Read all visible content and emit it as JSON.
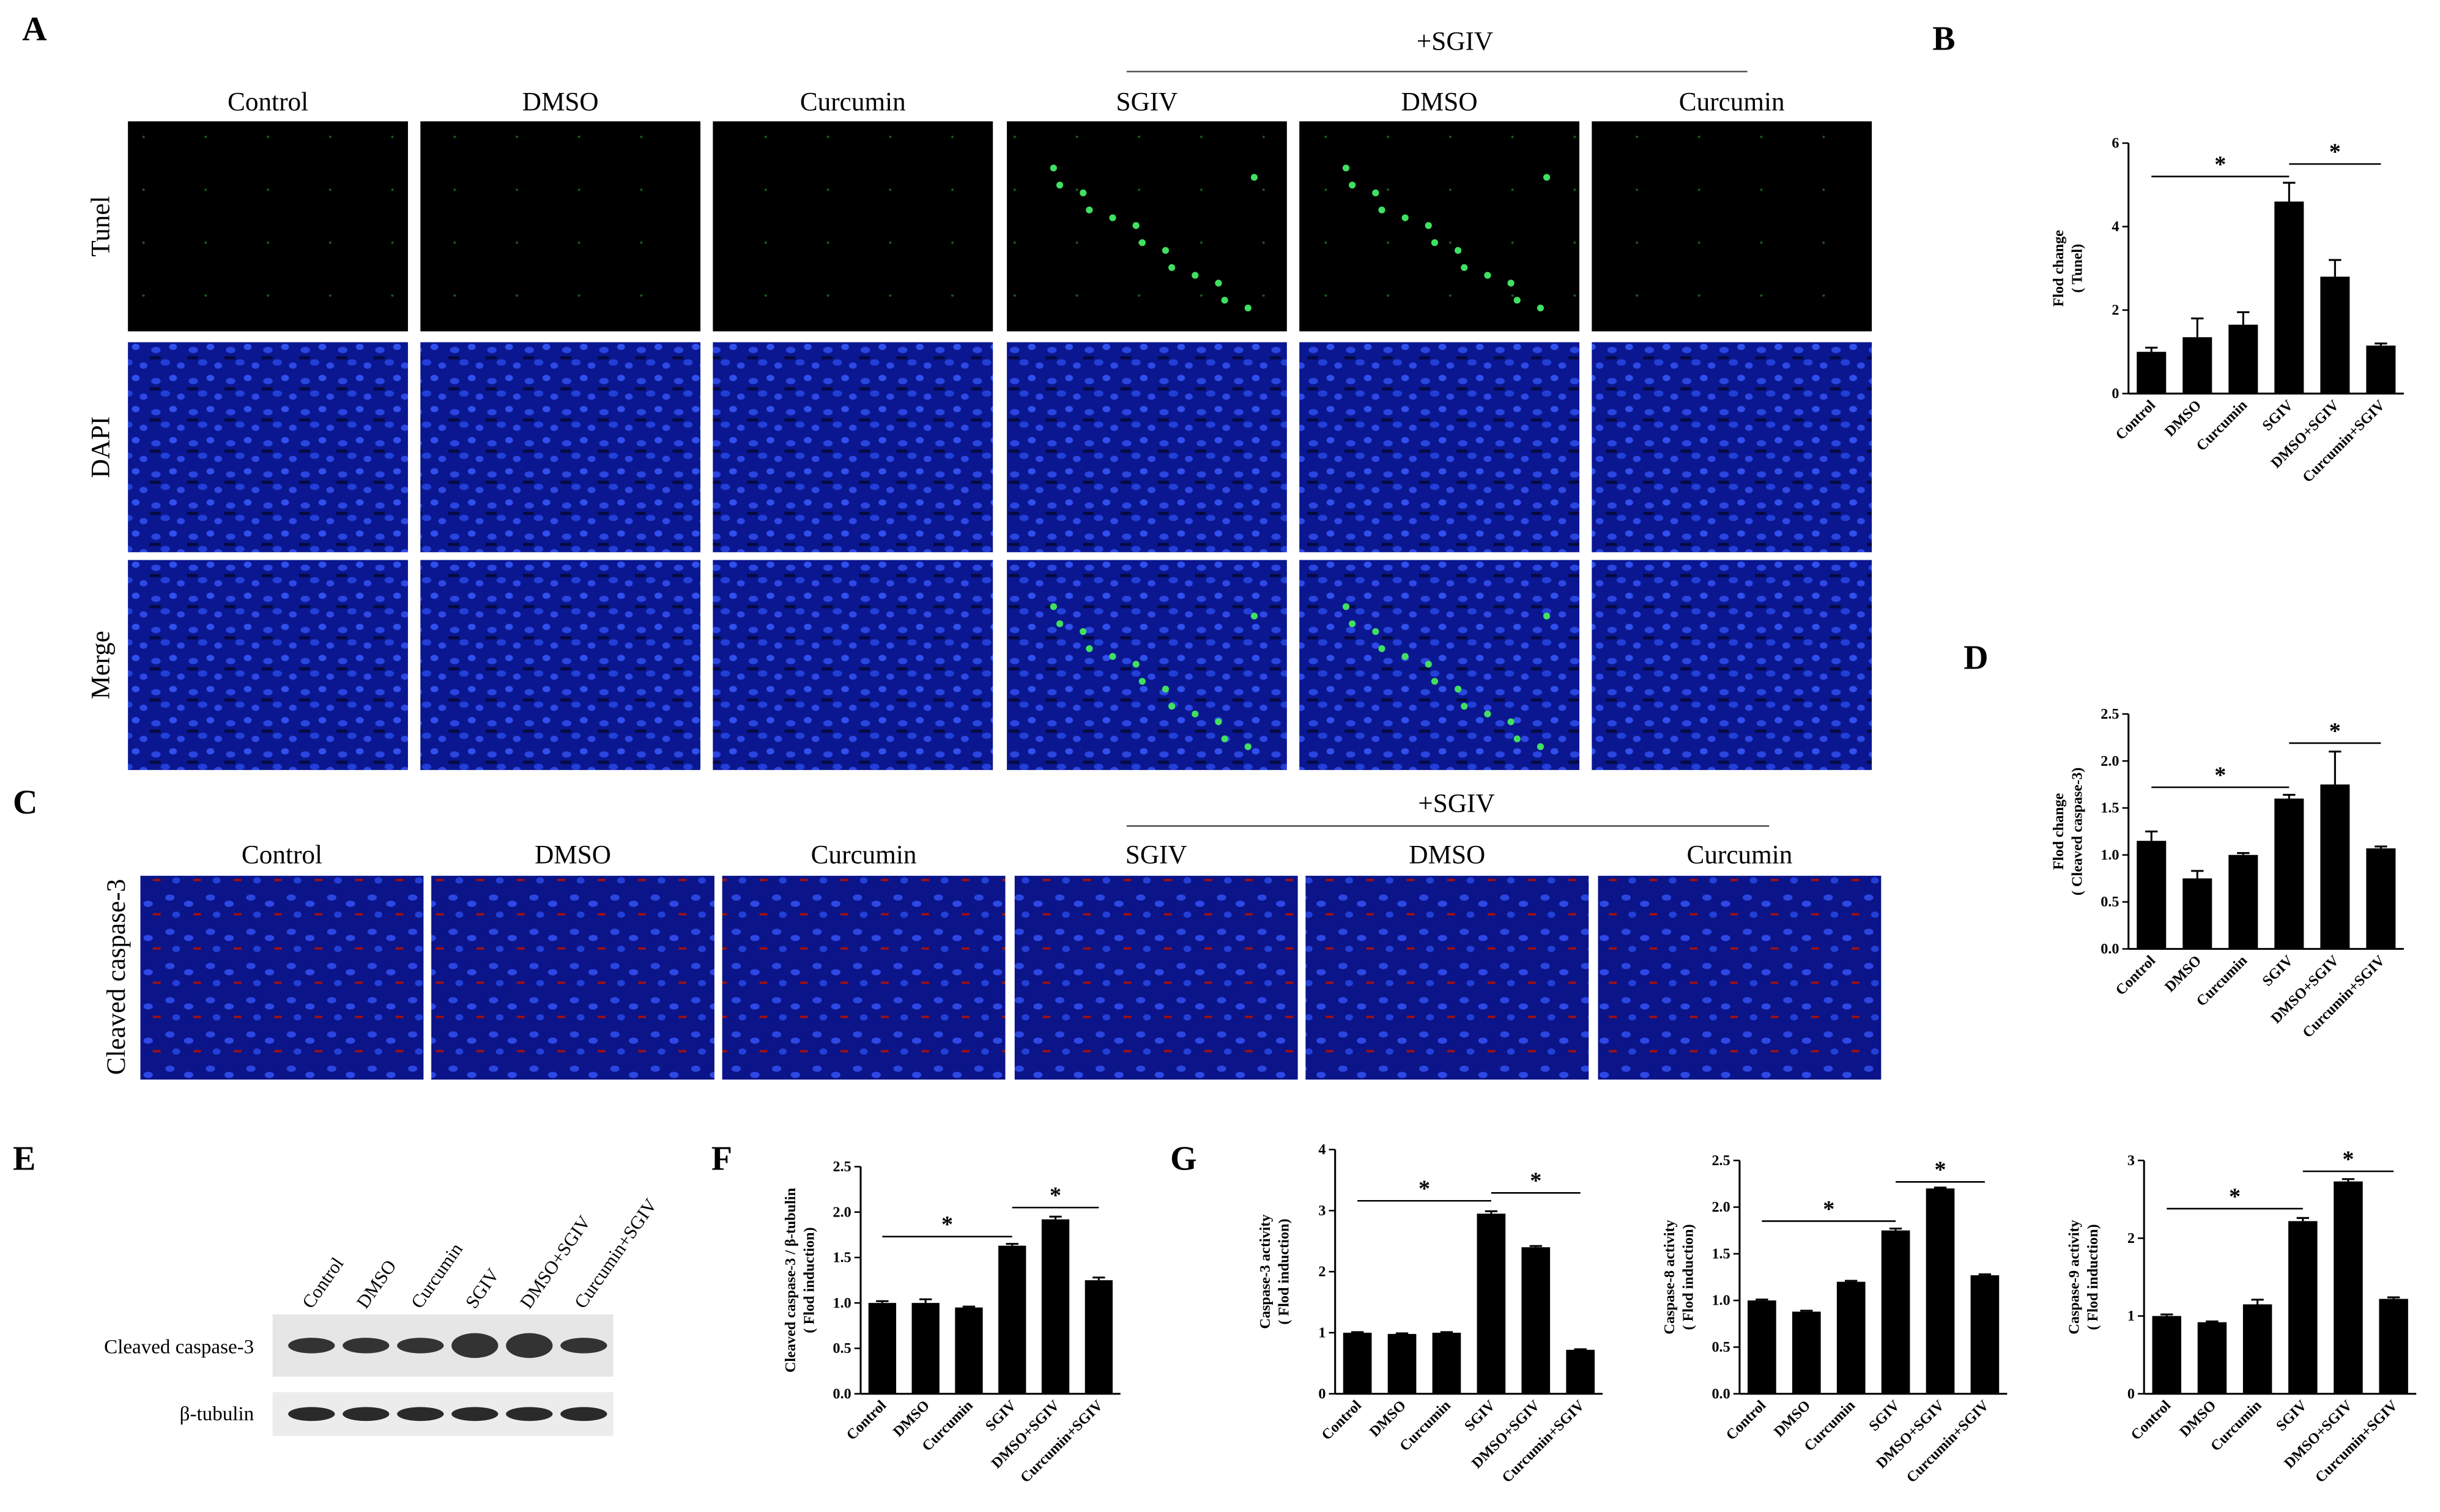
{
  "figure": {
    "panel_labels": [
      "A",
      "B",
      "C",
      "D",
      "E",
      "F",
      "G"
    ],
    "panel_a": {
      "group": "+SGIV",
      "columns": [
        "Control",
        "DMSO",
        "Curcumin",
        "SGIV",
        "DMSO",
        "Curcumin"
      ],
      "rows": [
        "Tunel",
        "DAPI",
        "Merge"
      ]
    },
    "panel_c": {
      "group": "+SGIV",
      "columns": [
        "Control",
        "DMSO",
        "Curcumin",
        "SGIV",
        "DMSO",
        "Curcumin"
      ],
      "row": "Cleaved caspase-3"
    },
    "panel_e": {
      "lanes": [
        "Control",
        "DMSO",
        "Curcumin",
        "SGIV",
        "DMSO+SGIV",
        "Curcumin+SGIV"
      ],
      "rows": [
        "Cleaved caspase-3",
        "β-tubulin"
      ]
    }
  },
  "chart_data": [
    {
      "type": "bar",
      "y_label": [
        "Flod change",
        "( Tunel)"
      ],
      "categories": [
        "Control",
        "DMSO",
        "Curcumin",
        "SGIV",
        "DMSO+SGIV",
        "Curcumin+SGIV"
      ],
      "values": [
        1.0,
        1.35,
        1.65,
        4.6,
        2.8,
        1.15
      ],
      "errors": [
        0.1,
        0.45,
        0.3,
        0.45,
        0.4,
        0.05
      ],
      "color": "#000000",
      "ylim": [
        0,
        6
      ],
      "yticks": [
        0,
        2,
        4,
        6
      ],
      "annotations": [
        {
          "text": "*",
          "from": 0,
          "to": 3,
          "y": 5.2
        },
        {
          "text": "*",
          "from": 3,
          "to": 5,
          "y": 5.5
        }
      ]
    },
    {
      "type": "bar",
      "y_label": [
        "Flod change",
        "( Cleaved caspase-3)"
      ],
      "categories": [
        "Control",
        "DMSO",
        "Curcumin",
        "SGIV",
        "DMSO+SGIV",
        "Curcumin+SGIV"
      ],
      "values": [
        1.15,
        0.75,
        1.0,
        1.6,
        1.75,
        1.07
      ],
      "errors": [
        0.1,
        0.08,
        0.02,
        0.04,
        0.35,
        0.02
      ],
      "color": "#000000",
      "ylim": [
        0,
        2.5
      ],
      "yticks": [
        {
          "value": 0,
          "label": "0.0"
        },
        {
          "value": 0.5,
          "label": "0.5"
        },
        {
          "value": 1,
          "label": "1.0"
        },
        {
          "value": 1.5,
          "label": "1.5"
        },
        {
          "value": 2,
          "label": "2.0"
        },
        {
          "value": 2.5,
          "label": "2.5"
        }
      ],
      "annotations": [
        {
          "text": "*",
          "from": 0,
          "to": 3,
          "y": 1.72
        },
        {
          "text": "*",
          "from": 3,
          "to": 5,
          "y": 2.19
        }
      ]
    },
    {
      "type": "bar",
      "y_label": [
        "Cleaved caspase-3 / β-tubulin",
        "( Flod induction)"
      ],
      "categories": [
        "Control",
        "DMSO",
        "Curcumin",
        "SGIV",
        "DMSO+SGIV",
        "Curcumin+SGIV"
      ],
      "values": [
        1.0,
        1.0,
        0.95,
        1.63,
        1.92,
        1.25
      ],
      "errors": [
        0.02,
        0.04,
        0.01,
        0.02,
        0.03,
        0.03
      ],
      "color": "#000000",
      "ylim": [
        0,
        2.5
      ],
      "yticks": [
        {
          "value": 0,
          "label": "0.0"
        },
        {
          "value": 0.5,
          "label": "0.5"
        },
        {
          "value": 1,
          "label": "1.0"
        },
        {
          "value": 1.5,
          "label": "1.5"
        },
        {
          "value": 2,
          "label": "2.0"
        },
        {
          "value": 2.5,
          "label": "2.5"
        }
      ],
      "annotations": [
        {
          "text": "*",
          "from": 0,
          "to": 3,
          "y": 1.73
        },
        {
          "text": "*",
          "from": 3,
          "to": 5,
          "y": 2.05
        }
      ]
    },
    {
      "type": "bar",
      "y_label": [
        "Caspase-3 activity",
        "( Flod induction)"
      ],
      "categories": [
        "Control",
        "DMSO",
        "Curcumin",
        "SGIV",
        "DMSO+SGIV",
        "Curcumin+SGIV"
      ],
      "values": [
        1.0,
        0.98,
        1.0,
        2.95,
        2.4,
        0.72
      ],
      "errors": [
        0.01,
        0.01,
        0.01,
        0.04,
        0.02,
        0.01
      ],
      "color": "#000000",
      "ylim": [
        0,
        4
      ],
      "yticks": [
        0,
        1,
        2,
        3,
        4
      ],
      "annotations": [
        {
          "text": "*",
          "from": 0,
          "to": 3,
          "y": 3.16
        },
        {
          "text": "*",
          "from": 3,
          "to": 5,
          "y": 3.29
        }
      ]
    },
    {
      "type": "bar",
      "y_label": [
        "Caspase-8 activity",
        "( Flod induction)"
      ],
      "categories": [
        "Control",
        "DMSO",
        "Curcumin",
        "SGIV",
        "DMSO+SGIV",
        "Curcumin+SGIV"
      ],
      "values": [
        1.0,
        0.88,
        1.2,
        1.75,
        2.2,
        1.27
      ],
      "errors": [
        0.01,
        0.01,
        0.01,
        0.02,
        0.01,
        0.01
      ],
      "color": "#000000",
      "ylim": [
        0,
        2.5
      ],
      "yticks": [
        {
          "value": 0,
          "label": "0.0"
        },
        {
          "value": 0.5,
          "label": "0.5"
        },
        {
          "value": 1,
          "label": "1.0"
        },
        {
          "value": 1.5,
          "label": "1.5"
        },
        {
          "value": 2,
          "label": "2.0"
        },
        {
          "value": 2.5,
          "label": "2.5"
        }
      ],
      "annotations": [
        {
          "text": "*",
          "from": 0,
          "to": 3,
          "y": 1.85
        },
        {
          "text": "*",
          "from": 3,
          "to": 5,
          "y": 2.27
        }
      ]
    },
    {
      "type": "bar",
      "y_label": [
        "Caspase-9 activity",
        "( Flod induction)"
      ],
      "categories": [
        "Control",
        "DMSO",
        "Curcumin",
        "SGIV",
        "DMSO+SGIV",
        "Curcumin+SGIV"
      ],
      "values": [
        1.0,
        0.92,
        1.15,
        2.22,
        2.73,
        1.22
      ],
      "errors": [
        0.02,
        0.01,
        0.06,
        0.04,
        0.03,
        0.02
      ],
      "color": "#000000",
      "ylim": [
        0,
        3
      ],
      "yticks": [
        0,
        1,
        2,
        3
      ],
      "annotations": [
        {
          "text": "*",
          "from": 0,
          "to": 3,
          "y": 2.38
        },
        {
          "text": "*",
          "from": 3,
          "to": 5,
          "y": 2.86
        }
      ]
    }
  ]
}
